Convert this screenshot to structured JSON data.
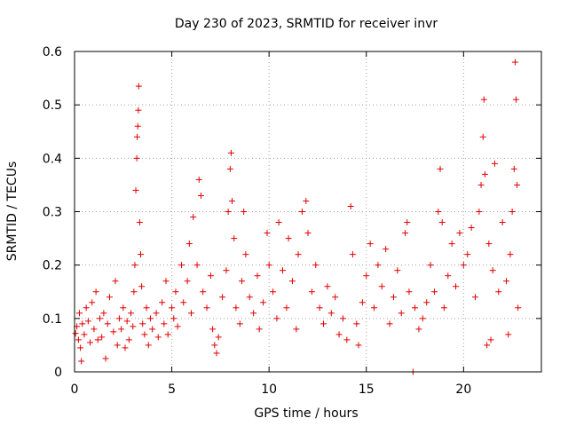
{
  "chart_data": {
    "type": "scatter",
    "title": "Day 230 of 2023, SRMTID for receiver invr",
    "xlabel": "GPS time / hours",
    "ylabel": "SRMTID / TECUs",
    "xlim": [
      0,
      24
    ],
    "ylim": [
      0,
      0.6
    ],
    "xticks": [
      {
        "value": 0,
        "label": "0"
      },
      {
        "value": 5,
        "label": "5"
      },
      {
        "value": 10,
        "label": "10"
      },
      {
        "value": 15,
        "label": "15"
      },
      {
        "value": 20,
        "label": "20"
      }
    ],
    "yticks": [
      {
        "value": 0,
        "label": "0"
      },
      {
        "value": 0.1,
        "label": "0.1"
      },
      {
        "value": 0.2,
        "label": "0.2"
      },
      {
        "value": 0.3,
        "label": "0.3"
      },
      {
        "value": 0.4,
        "label": "0.4"
      },
      {
        "value": 0.5,
        "label": "0.5"
      },
      {
        "value": 0.6,
        "label": "0.6"
      }
    ],
    "grid": true,
    "marker": "+",
    "color": "#e00000",
    "series": [
      {
        "name": "SRMTID",
        "points": [
          [
            0.05,
            0.072
          ],
          [
            0.12,
            0.085
          ],
          [
            0.2,
            0.06
          ],
          [
            0.25,
            0.11
          ],
          [
            0.3,
            0.045
          ],
          [
            0.35,
            0.02
          ],
          [
            0.4,
            0.09
          ],
          [
            0.5,
            0.07
          ],
          [
            0.6,
            0.12
          ],
          [
            0.7,
            0.095
          ],
          [
            0.8,
            0.055
          ],
          [
            0.9,
            0.13
          ],
          [
            1.0,
            0.08
          ],
          [
            1.1,
            0.15
          ],
          [
            1.2,
            0.06
          ],
          [
            1.3,
            0.1
          ],
          [
            1.4,
            0.065
          ],
          [
            1.5,
            0.11
          ],
          [
            1.6,
            0.025
          ],
          [
            1.7,
            0.09
          ],
          [
            1.8,
            0.14
          ],
          [
            2.0,
            0.075
          ],
          [
            2.1,
            0.17
          ],
          [
            2.2,
            0.05
          ],
          [
            2.3,
            0.1
          ],
          [
            2.4,
            0.08
          ],
          [
            2.5,
            0.12
          ],
          [
            2.6,
            0.045
          ],
          [
            2.7,
            0.095
          ],
          [
            2.8,
            0.06
          ],
          [
            2.9,
            0.11
          ],
          [
            3.0,
            0.085
          ],
          [
            3.05,
            0.15
          ],
          [
            3.1,
            0.2
          ],
          [
            3.15,
            0.34
          ],
          [
            3.2,
            0.4
          ],
          [
            3.22,
            0.44
          ],
          [
            3.25,
            0.46
          ],
          [
            3.28,
            0.49
          ],
          [
            3.3,
            0.535
          ],
          [
            3.35,
            0.28
          ],
          [
            3.4,
            0.22
          ],
          [
            3.45,
            0.16
          ],
          [
            3.5,
            0.09
          ],
          [
            3.6,
            0.07
          ],
          [
            3.7,
            0.12
          ],
          [
            3.8,
            0.05
          ],
          [
            3.9,
            0.1
          ],
          [
            4.0,
            0.08
          ],
          [
            4.2,
            0.11
          ],
          [
            4.3,
            0.065
          ],
          [
            4.5,
            0.13
          ],
          [
            4.6,
            0.09
          ],
          [
            4.7,
            0.17
          ],
          [
            4.8,
            0.07
          ],
          [
            5.0,
            0.12
          ],
          [
            5.1,
            0.1
          ],
          [
            5.2,
            0.15
          ],
          [
            5.3,
            0.085
          ],
          [
            5.5,
            0.2
          ],
          [
            5.6,
            0.13
          ],
          [
            5.8,
            0.17
          ],
          [
            5.9,
            0.24
          ],
          [
            6.0,
            0.11
          ],
          [
            6.1,
            0.29
          ],
          [
            6.3,
            0.2
          ],
          [
            6.4,
            0.36
          ],
          [
            6.5,
            0.33
          ],
          [
            6.6,
            0.15
          ],
          [
            6.8,
            0.12
          ],
          [
            7.0,
            0.18
          ],
          [
            7.1,
            0.08
          ],
          [
            7.2,
            0.05
          ],
          [
            7.3,
            0.035
          ],
          [
            7.4,
            0.065
          ],
          [
            7.6,
            0.14
          ],
          [
            7.8,
            0.19
          ],
          [
            7.9,
            0.3
          ],
          [
            8.0,
            0.38
          ],
          [
            8.05,
            0.41
          ],
          [
            8.1,
            0.32
          ],
          [
            8.2,
            0.25
          ],
          [
            8.3,
            0.12
          ],
          [
            8.5,
            0.09
          ],
          [
            8.6,
            0.17
          ],
          [
            8.7,
            0.3
          ],
          [
            8.8,
            0.22
          ],
          [
            9.0,
            0.14
          ],
          [
            9.2,
            0.11
          ],
          [
            9.4,
            0.18
          ],
          [
            9.5,
            0.08
          ],
          [
            9.7,
            0.13
          ],
          [
            9.9,
            0.26
          ],
          [
            10.0,
            0.2
          ],
          [
            10.2,
            0.15
          ],
          [
            10.4,
            0.1
          ],
          [
            10.5,
            0.28
          ],
          [
            10.7,
            0.19
          ],
          [
            10.9,
            0.12
          ],
          [
            11.0,
            0.25
          ],
          [
            11.2,
            0.17
          ],
          [
            11.4,
            0.08
          ],
          [
            11.5,
            0.22
          ],
          [
            11.7,
            0.3
          ],
          [
            11.9,
            0.32
          ],
          [
            12.0,
            0.26
          ],
          [
            12.2,
            0.15
          ],
          [
            12.4,
            0.2
          ],
          [
            12.6,
            0.12
          ],
          [
            12.8,
            0.09
          ],
          [
            13.0,
            0.16
          ],
          [
            13.2,
            0.11
          ],
          [
            13.4,
            0.14
          ],
          [
            13.6,
            0.07
          ],
          [
            13.8,
            0.1
          ],
          [
            14.0,
            0.06
          ],
          [
            14.2,
            0.31
          ],
          [
            14.3,
            0.22
          ],
          [
            14.5,
            0.09
          ],
          [
            14.6,
            0.05
          ],
          [
            14.8,
            0.13
          ],
          [
            15.0,
            0.18
          ],
          [
            15.2,
            0.24
          ],
          [
            15.4,
            0.12
          ],
          [
            15.6,
            0.2
          ],
          [
            15.8,
            0.16
          ],
          [
            16.0,
            0.23
          ],
          [
            16.2,
            0.09
          ],
          [
            16.4,
            0.14
          ],
          [
            16.6,
            0.19
          ],
          [
            16.8,
            0.11
          ],
          [
            17.0,
            0.26
          ],
          [
            17.1,
            0.28
          ],
          [
            17.2,
            0.15
          ],
          [
            17.4,
            0.0
          ],
          [
            17.5,
            0.12
          ],
          [
            17.7,
            0.08
          ],
          [
            17.9,
            0.1
          ],
          [
            18.1,
            0.13
          ],
          [
            18.3,
            0.2
          ],
          [
            18.5,
            0.15
          ],
          [
            18.7,
            0.3
          ],
          [
            18.8,
            0.38
          ],
          [
            18.9,
            0.28
          ],
          [
            19.0,
            0.12
          ],
          [
            19.2,
            0.18
          ],
          [
            19.4,
            0.24
          ],
          [
            19.6,
            0.16
          ],
          [
            19.8,
            0.26
          ],
          [
            20.0,
            0.2
          ],
          [
            20.2,
            0.22
          ],
          [
            20.4,
            0.27
          ],
          [
            20.6,
            0.14
          ],
          [
            20.8,
            0.3
          ],
          [
            20.9,
            0.35
          ],
          [
            21.0,
            0.44
          ],
          [
            21.05,
            0.51
          ],
          [
            21.1,
            0.37
          ],
          [
            21.2,
            0.05
          ],
          [
            21.3,
            0.24
          ],
          [
            21.4,
            0.06
          ],
          [
            21.5,
            0.19
          ],
          [
            21.6,
            0.39
          ],
          [
            21.8,
            0.15
          ],
          [
            22.0,
            0.28
          ],
          [
            22.2,
            0.17
          ],
          [
            22.3,
            0.07
          ],
          [
            22.4,
            0.22
          ],
          [
            22.5,
            0.3
          ],
          [
            22.6,
            0.38
          ],
          [
            22.65,
            0.58
          ],
          [
            22.7,
            0.51
          ],
          [
            22.75,
            0.35
          ],
          [
            22.8,
            0.12
          ]
        ]
      }
    ]
  }
}
